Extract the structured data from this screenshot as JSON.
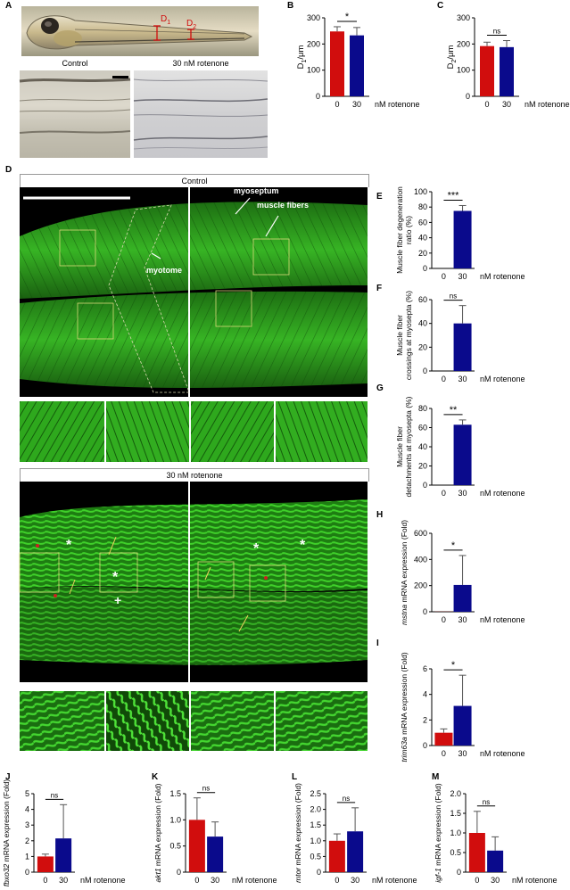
{
  "figure": {
    "panel_letters": {
      "A": "A",
      "B": "B",
      "C": "C",
      "D": "D",
      "E": "E",
      "F": "F",
      "G": "G",
      "H": "H",
      "I": "I",
      "J": "J",
      "K": "K",
      "L": "L",
      "M": "M"
    },
    "panelA": {
      "d1": "D",
      "d1_sub": "1",
      "d2": "D",
      "d2_sub": "2",
      "control_label": "Control",
      "treated_label": "30 nM rotenone"
    },
    "panelD": {
      "control_title": "Control",
      "rotenone_title": "30 nM rotenone",
      "annotations": {
        "myoseptum": "myoseptum",
        "muscle_fibers": "muscle fibers",
        "myotome": "myotome"
      }
    },
    "colors": {
      "red": "#d10d0d",
      "blue": "#0a0a8c",
      "green": "#2aa61c"
    }
  },
  "chart_data": [
    {
      "id": "B",
      "type": "bar",
      "categories": [
        "0",
        "30"
      ],
      "values": [
        248,
        233
      ],
      "errors": [
        18,
        30
      ],
      "unit_label": "nM rotenone",
      "ylabel": "D1/μm",
      "ylabel_main": "D",
      "ylabel_sub": "1",
      "ylabel_rest": "/μm",
      "yticks": [
        "0",
        "100",
        "200",
        "300"
      ],
      "ylim": [
        0,
        300
      ],
      "significance": "*",
      "colors": [
        "#d10d0d",
        "#0a0a8c"
      ]
    },
    {
      "id": "C",
      "type": "bar",
      "categories": [
        "0",
        "30"
      ],
      "values": [
        192,
        188
      ],
      "errors": [
        15,
        25
      ],
      "unit_label": "nM rotenone",
      "ylabel": "D2/μm",
      "ylabel_main": "D",
      "ylabel_sub": "2",
      "ylabel_rest": "/μm",
      "yticks": [
        "0",
        "100",
        "200",
        "300"
      ],
      "ylim": [
        0,
        300
      ],
      "significance": "ns",
      "colors": [
        "#d10d0d",
        "#0a0a8c"
      ]
    },
    {
      "id": "E",
      "type": "bar",
      "categories": [
        "0",
        "30"
      ],
      "values": [
        0,
        75
      ],
      "errors": [
        0,
        7
      ],
      "unit_label": "nM rotenone",
      "ylabel": "Muscle fiber degeneration ratio (%)",
      "ylabel_lines": [
        "Muscle fiber degeneration",
        "ratio (%)"
      ],
      "yticks": [
        "0",
        "20",
        "40",
        "60",
        "80",
        "100"
      ],
      "ylim": [
        0,
        100
      ],
      "significance": "***",
      "colors": [
        "#d10d0d",
        "#0a0a8c"
      ]
    },
    {
      "id": "F",
      "type": "bar",
      "categories": [
        "0",
        "30"
      ],
      "values": [
        0,
        40
      ],
      "errors": [
        0,
        15
      ],
      "unit_label": "nM rotenone",
      "ylabel": "Muscle fiber crossings at myosepta (%)",
      "ylabel_lines": [
        "Muscle fiber",
        "crossings at myosepta (%)"
      ],
      "yticks": [
        "0",
        "20",
        "40",
        "60"
      ],
      "ylim": [
        0,
        60
      ],
      "significance": "ns",
      "colors": [
        "#d10d0d",
        "#0a0a8c"
      ]
    },
    {
      "id": "G",
      "type": "bar",
      "categories": [
        "0",
        "30"
      ],
      "values": [
        0,
        63
      ],
      "errors": [
        0,
        5
      ],
      "unit_label": "nM rotenone",
      "ylabel": "Muscle fiber detachments at myosepta (%)",
      "ylabel_lines": [
        "Muscle fiber",
        "detachments at myosepta (%)"
      ],
      "yticks": [
        "0",
        "20",
        "40",
        "60",
        "80"
      ],
      "ylim": [
        0,
        80
      ],
      "significance": "**",
      "colors": [
        "#d10d0d",
        "#0a0a8c"
      ]
    },
    {
      "id": "H",
      "type": "bar",
      "categories": [
        "0",
        "30"
      ],
      "values": [
        1,
        205
      ],
      "errors": [
        0,
        225
      ],
      "unit_label": "nM rotenone",
      "ylabel": "mstna mRNA expression (Fold)",
      "ylabel_italic": "mstna",
      "ylabel_rest": " mRNA expression (Fold)",
      "yticks": [
        "0",
        "200",
        "400",
        "600"
      ],
      "ylim": [
        0,
        600
      ],
      "significance": "*",
      "colors": [
        "#d10d0d",
        "#0a0a8c"
      ]
    },
    {
      "id": "I",
      "type": "bar",
      "categories": [
        "0",
        "30"
      ],
      "values": [
        1,
        3.1
      ],
      "errors": [
        0.3,
        2.4
      ],
      "unit_label": "nM rotenone",
      "ylabel": "trim63a mRNA expression (Fold)",
      "ylabel_italic": "trim63a",
      "ylabel_rest": " mRNA expression (Fold)",
      "yticks": [
        "0",
        "2",
        "4",
        "6"
      ],
      "ylim": [
        0,
        6
      ],
      "significance": "*",
      "colors": [
        "#d10d0d",
        "#0a0a8c"
      ]
    },
    {
      "id": "J",
      "type": "bar",
      "categories": [
        "0",
        "30"
      ],
      "values": [
        1,
        2.15
      ],
      "errors": [
        0.15,
        2.15
      ],
      "unit_label": "nM rotenone",
      "ylabel": "fbxo32 mRNA expression (Fold)",
      "ylabel_italic": "fbxo32",
      "ylabel_rest": " mRNA expression (Fold)",
      "yticks": [
        "0",
        "1",
        "2",
        "3",
        "4",
        "5"
      ],
      "ylim": [
        0,
        5
      ],
      "significance": "ns",
      "colors": [
        "#d10d0d",
        "#0a0a8c"
      ]
    },
    {
      "id": "K",
      "type": "bar",
      "categories": [
        "0",
        "30"
      ],
      "values": [
        1,
        0.68
      ],
      "errors": [
        0.42,
        0.28
      ],
      "unit_label": "nM rotenone",
      "ylabel": "akt1 mRNA expression (Fold)",
      "ylabel_italic": "akt1",
      "ylabel_rest": " mRNA expression (Fold)",
      "yticks": [
        "0",
        "0.5",
        "1.0",
        "1.5"
      ],
      "ylim": [
        0,
        1.5
      ],
      "significance": "ns",
      "colors": [
        "#d10d0d",
        "#0a0a8c"
      ]
    },
    {
      "id": "L",
      "type": "bar",
      "categories": [
        "0",
        "30"
      ],
      "values": [
        1,
        1.3
      ],
      "errors": [
        0.22,
        0.75
      ],
      "unit_label": "nM rotenone",
      "ylabel": "mtor mRNA expression (Fold)",
      "ylabel_italic": "mtor",
      "ylabel_rest": " mRNA expression (Fold)",
      "yticks": [
        "0",
        "0.5",
        "1.0",
        "1.5",
        "2.0",
        "2.5"
      ],
      "ylim": [
        0,
        2.5
      ],
      "significance": "ns",
      "colors": [
        "#d10d0d",
        "#0a0a8c"
      ]
    },
    {
      "id": "M",
      "type": "bar",
      "categories": [
        "0",
        "30"
      ],
      "values": [
        1,
        0.55
      ],
      "errors": [
        0.55,
        0.35
      ],
      "unit_label": "nM rotenone",
      "ylabel": "igf-1 mRNA expression (Fold)",
      "ylabel_italic": "igf-1",
      "ylabel_rest": " mRNA expression (Fold)",
      "yticks": [
        "0",
        "0.5",
        "1.0",
        "1.5",
        "2.0"
      ],
      "ylim": [
        0,
        2
      ],
      "significance": "ns",
      "colors": [
        "#d10d0d",
        "#0a0a8c"
      ]
    }
  ]
}
